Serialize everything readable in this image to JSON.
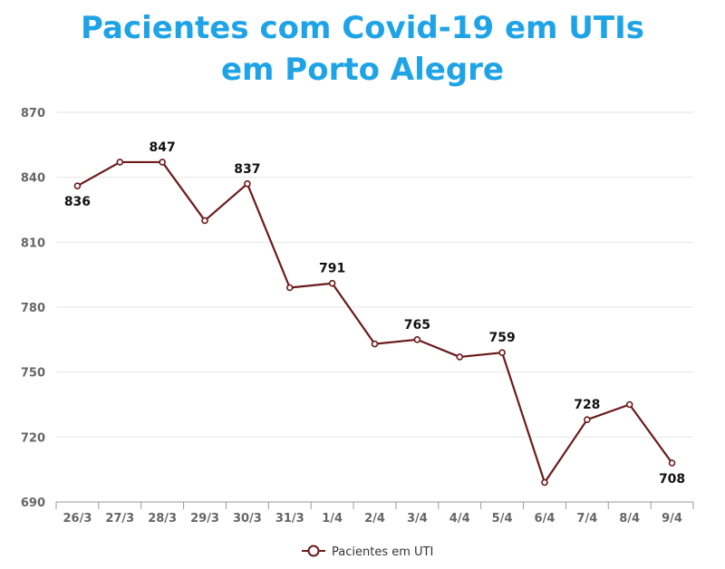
{
  "title_line1": "Pacientes com Covid-19 em UTIs",
  "title_line2": "em Porto Alegre",
  "chart_data": {
    "type": "line",
    "title": "Pacientes com Covid-19 em UTIs em Porto Alegre",
    "xlabel": "",
    "ylabel": "",
    "categories": [
      "26/3",
      "27/3",
      "28/3",
      "29/3",
      "30/3",
      "31/3",
      "1/4",
      "2/4",
      "3/4",
      "4/4",
      "5/4",
      "6/4",
      "7/4",
      "8/4",
      "9/4"
    ],
    "series": [
      {
        "name": "Pacientes em UTI",
        "color": "#6b1a1a",
        "values": [
          836,
          847,
          847,
          820,
          837,
          789,
          791,
          763,
          765,
          757,
          759,
          699,
          728,
          735,
          708
        ]
      }
    ],
    "ylim": [
      690,
      870
    ],
    "yticks": [
      690,
      720,
      750,
      780,
      810,
      840,
      870
    ],
    "data_labels": [
      {
        "index": 0,
        "text": "836",
        "position": "below"
      },
      {
        "index": 2,
        "text": "847",
        "position": "above"
      },
      {
        "index": 4,
        "text": "837",
        "position": "above"
      },
      {
        "index": 6,
        "text": "791",
        "position": "above"
      },
      {
        "index": 8,
        "text": "765",
        "position": "above"
      },
      {
        "index": 10,
        "text": "759",
        "position": "above"
      },
      {
        "index": 12,
        "text": "728",
        "position": "above"
      },
      {
        "index": 14,
        "text": "708",
        "position": "below"
      }
    ],
    "grid": true,
    "legend_position": "bottom-center"
  }
}
